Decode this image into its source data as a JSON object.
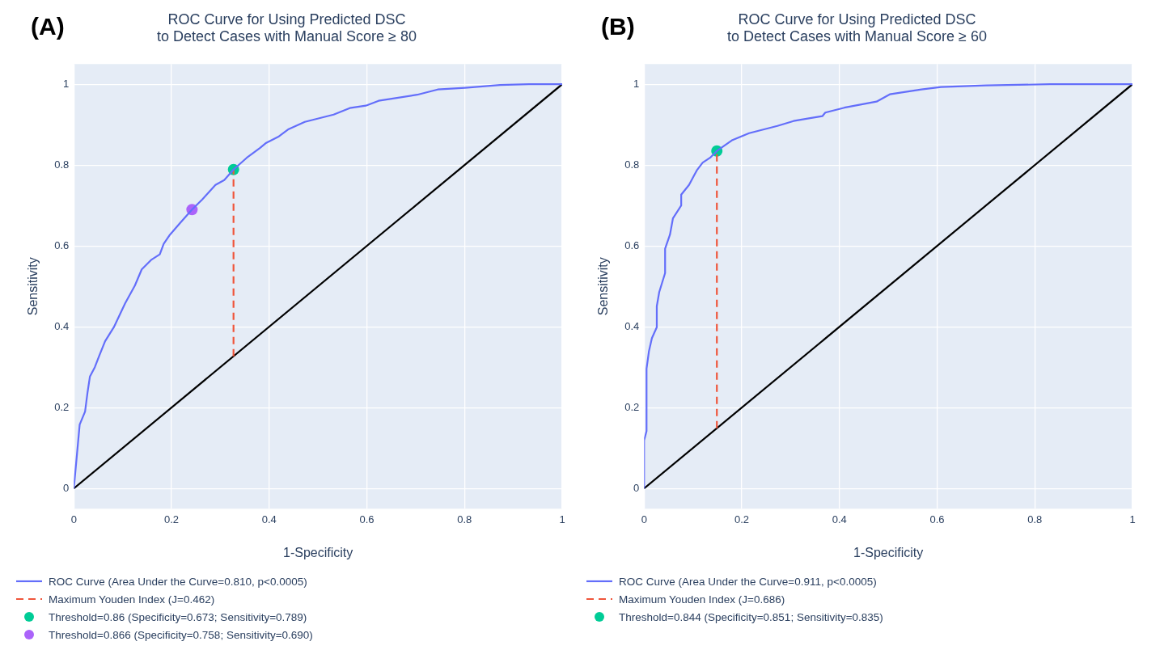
{
  "chart_data": [
    {
      "type": "line",
      "title": "ROC Curve for Using Predicted DSC\nto Detect Cases with Manual Score ≥ 80",
      "xlabel": "1-Specificity",
      "ylabel": "Sensitivity",
      "annotations": [
        "(A)"
      ],
      "xlim": [
        0,
        1
      ],
      "ylim": [
        -0.05,
        1.05
      ],
      "xticks": [
        0,
        0.2,
        0.4,
        0.6,
        0.8,
        1
      ],
      "yticks": [
        0,
        0.2,
        0.4,
        0.6,
        0.8,
        1
      ],
      "grid": true,
      "legend": "bottom left",
      "series": [
        {
          "name": "ROC Curve (Area Under the Curve=0.810, p<0.0005)",
          "line_style": "solid",
          "color": "#636efa",
          "x": [
            0,
            0.012,
            0.023,
            0.028,
            0.033,
            0.043,
            0.052,
            0.064,
            0.082,
            0.105,
            0.125,
            0.139,
            0.158,
            0.176,
            0.184,
            0.197,
            0.217,
            0.242,
            0.263,
            0.29,
            0.308,
            0.327,
            0.354,
            0.381,
            0.394,
            0.42,
            0.44,
            0.473,
            0.532,
            0.565,
            0.598,
            0.624,
            0.703,
            0.745,
            0.801,
            0.873,
            0.932,
            1
          ],
          "values": [
            0,
            0.158,
            0.19,
            0.237,
            0.277,
            0.3,
            0.328,
            0.364,
            0.399,
            0.458,
            0.502,
            0.542,
            0.565,
            0.579,
            0.605,
            0.628,
            0.656,
            0.69,
            0.715,
            0.751,
            0.763,
            0.789,
            0.818,
            0.842,
            0.855,
            0.871,
            0.889,
            0.907,
            0.925,
            0.941,
            0.947,
            0.959,
            0.974,
            0.987,
            0.991,
            0.998,
            1,
            1
          ]
        },
        {
          "name": "Maximum Youden Index (J=0.462)",
          "line_style": "dashed",
          "color": "#ef553b",
          "x": [
            0.327,
            0.327
          ],
          "values": [
            0.327,
            0.789
          ]
        },
        {
          "name": "Threshold=0.86 (Specificity=0.673; Sensitivity=0.789)",
          "type": "scatter",
          "marker": "circle",
          "color": "#00cc96",
          "x": [
            0.327
          ],
          "values": [
            0.789
          ]
        },
        {
          "name": "Threshold=0.866 (Specificity=0.758; Sensitivity=0.690)",
          "type": "scatter",
          "marker": "circle",
          "color": "#ab63fa",
          "x": [
            0.242
          ],
          "values": [
            0.69
          ]
        },
        {
          "type": "line",
          "line_style": "solid",
          "color": "#000000",
          "x": [
            0,
            1
          ],
          "values": [
            0,
            1
          ]
        }
      ]
    },
    {
      "type": "line",
      "title": "ROC Curve for Using Predicted DSC\nto Detect Cases with Manual Score ≥ 60",
      "xlabel": "1-Specificity",
      "ylabel": "Sensitivity",
      "annotations": [
        "(B)"
      ],
      "xlim": [
        0,
        1
      ],
      "ylim": [
        -0.05,
        1.05
      ],
      "xticks": [
        0,
        0.2,
        0.4,
        0.6,
        0.8,
        1
      ],
      "yticks": [
        0,
        0.2,
        0.4,
        0.6,
        0.8,
        1
      ],
      "grid": true,
      "legend": "bottom left",
      "series": [
        {
          "name": "ROC Curve (Area Under the Curve=0.911, p<0.0005)",
          "line_style": "solid",
          "color": "#636efa",
          "x": [
            0,
            0,
            0.005,
            0.005,
            0.01,
            0.016,
            0.026,
            0.026,
            0.031,
            0.043,
            0.043,
            0.053,
            0.059,
            0.076,
            0.076,
            0.092,
            0.103,
            0.108,
            0.12,
            0.135,
            0.149,
            0.181,
            0.215,
            0.273,
            0.306,
            0.335,
            0.365,
            0.371,
            0.41,
            0.476,
            0.503,
            0.568,
            0.608,
            0.7,
            0.831,
            1
          ],
          "values": [
            0,
            0.119,
            0.142,
            0.296,
            0.34,
            0.372,
            0.399,
            0.451,
            0.486,
            0.533,
            0.593,
            0.628,
            0.668,
            0.7,
            0.727,
            0.751,
            0.776,
            0.787,
            0.806,
            0.818,
            0.835,
            0.862,
            0.879,
            0.897,
            0.909,
            0.915,
            0.921,
            0.93,
            0.942,
            0.957,
            0.975,
            0.987,
            0.993,
            0.997,
            1,
            1
          ]
        },
        {
          "name": "Maximum Youden Index (J=0.686)",
          "line_style": "dashed",
          "color": "#ef553b",
          "x": [
            0.149,
            0.149
          ],
          "values": [
            0.149,
            0.835
          ]
        },
        {
          "name": "Threshold=0.844 (Specificity=0.851; Sensitivity=0.835)",
          "type": "scatter",
          "marker": "circle",
          "color": "#00cc96",
          "x": [
            0.149
          ],
          "values": [
            0.835
          ]
        },
        {
          "type": "line",
          "line_style": "solid",
          "color": "#000000",
          "x": [
            0,
            1
          ],
          "values": [
            0,
            1
          ]
        }
      ]
    }
  ]
}
